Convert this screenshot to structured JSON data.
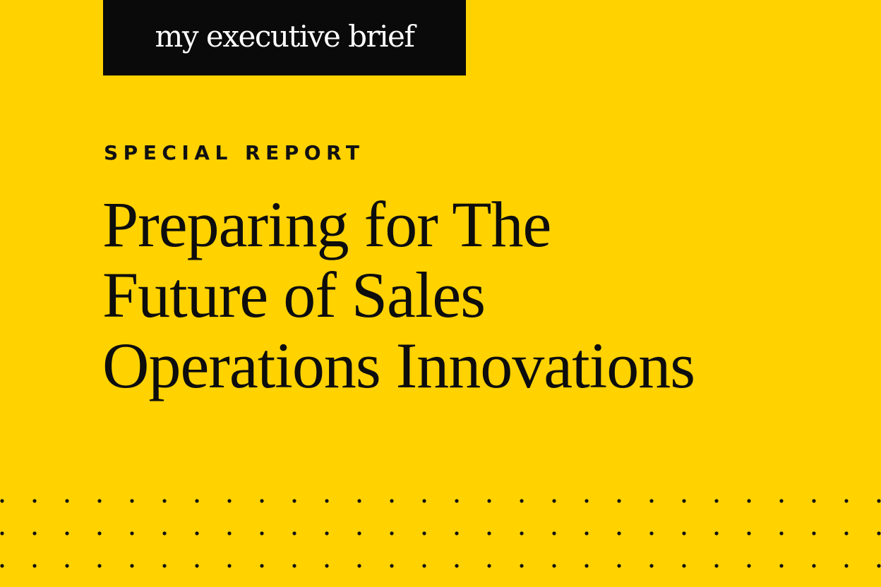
{
  "brand": "my executive brief",
  "eyebrow": "SPECIAL REPORT",
  "title_lines": [
    "Preparing for The",
    "Future of Sales",
    "Operations Innovations"
  ]
}
